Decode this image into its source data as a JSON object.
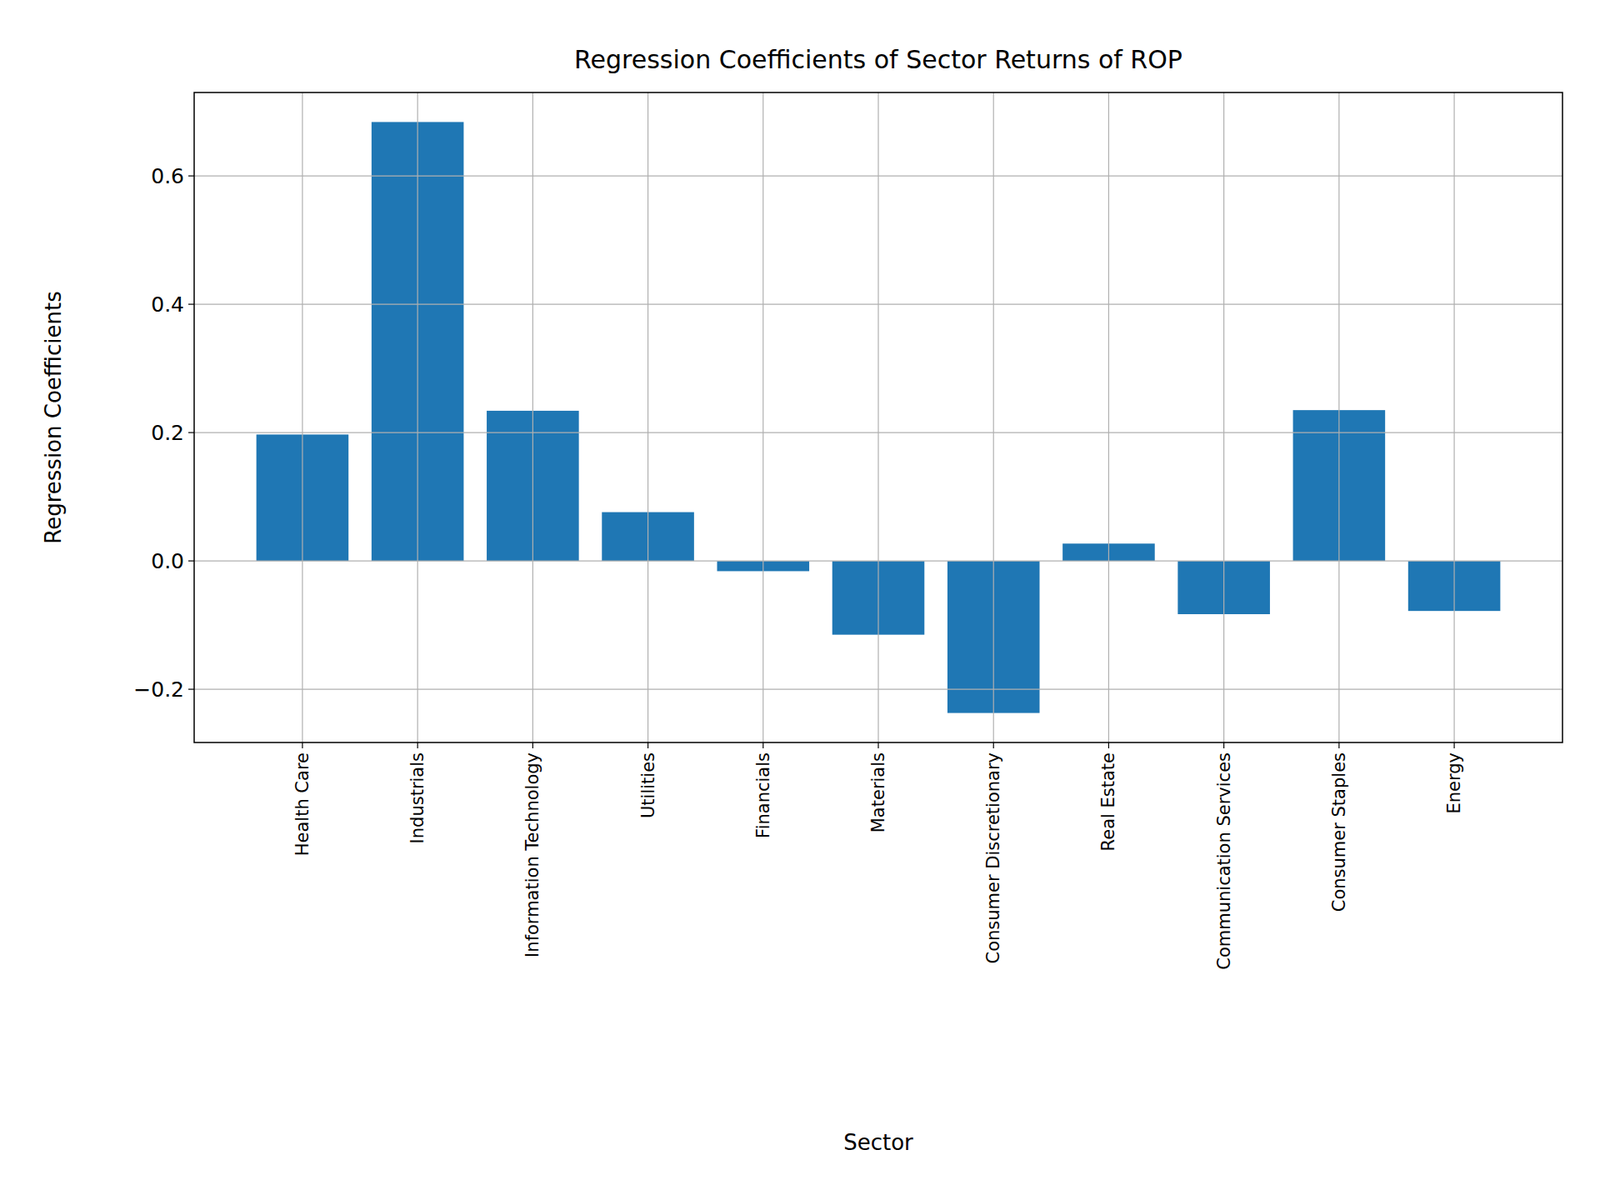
{
  "chart_data": {
    "type": "bar",
    "title": "Regression Coefficients of Sector Returns of ROP",
    "x_label": "Sector",
    "y_label": "Regression Coefficients",
    "categories": [
      "Health Care",
      "Industrials",
      "Information Technology",
      "Utilities",
      "Financials",
      "Materials",
      "Consumer Discretionary",
      "Real Estate",
      "Communication Services",
      "Consumer Staples",
      "Energy"
    ],
    "values": [
      0.197,
      0.684,
      0.234,
      0.076,
      -0.016,
      -0.115,
      -0.237,
      0.027,
      -0.083,
      0.235,
      -0.078
    ],
    "color": "#1f77b4",
    "ylim": [
      -0.283,
      0.73
    ],
    "yticks": [
      {
        "value": -0.2,
        "label": "−0.2"
      },
      {
        "value": 0,
        "label": "0.0"
      },
      0.2,
      0.4,
      0.6
    ],
    "grid": true
  }
}
